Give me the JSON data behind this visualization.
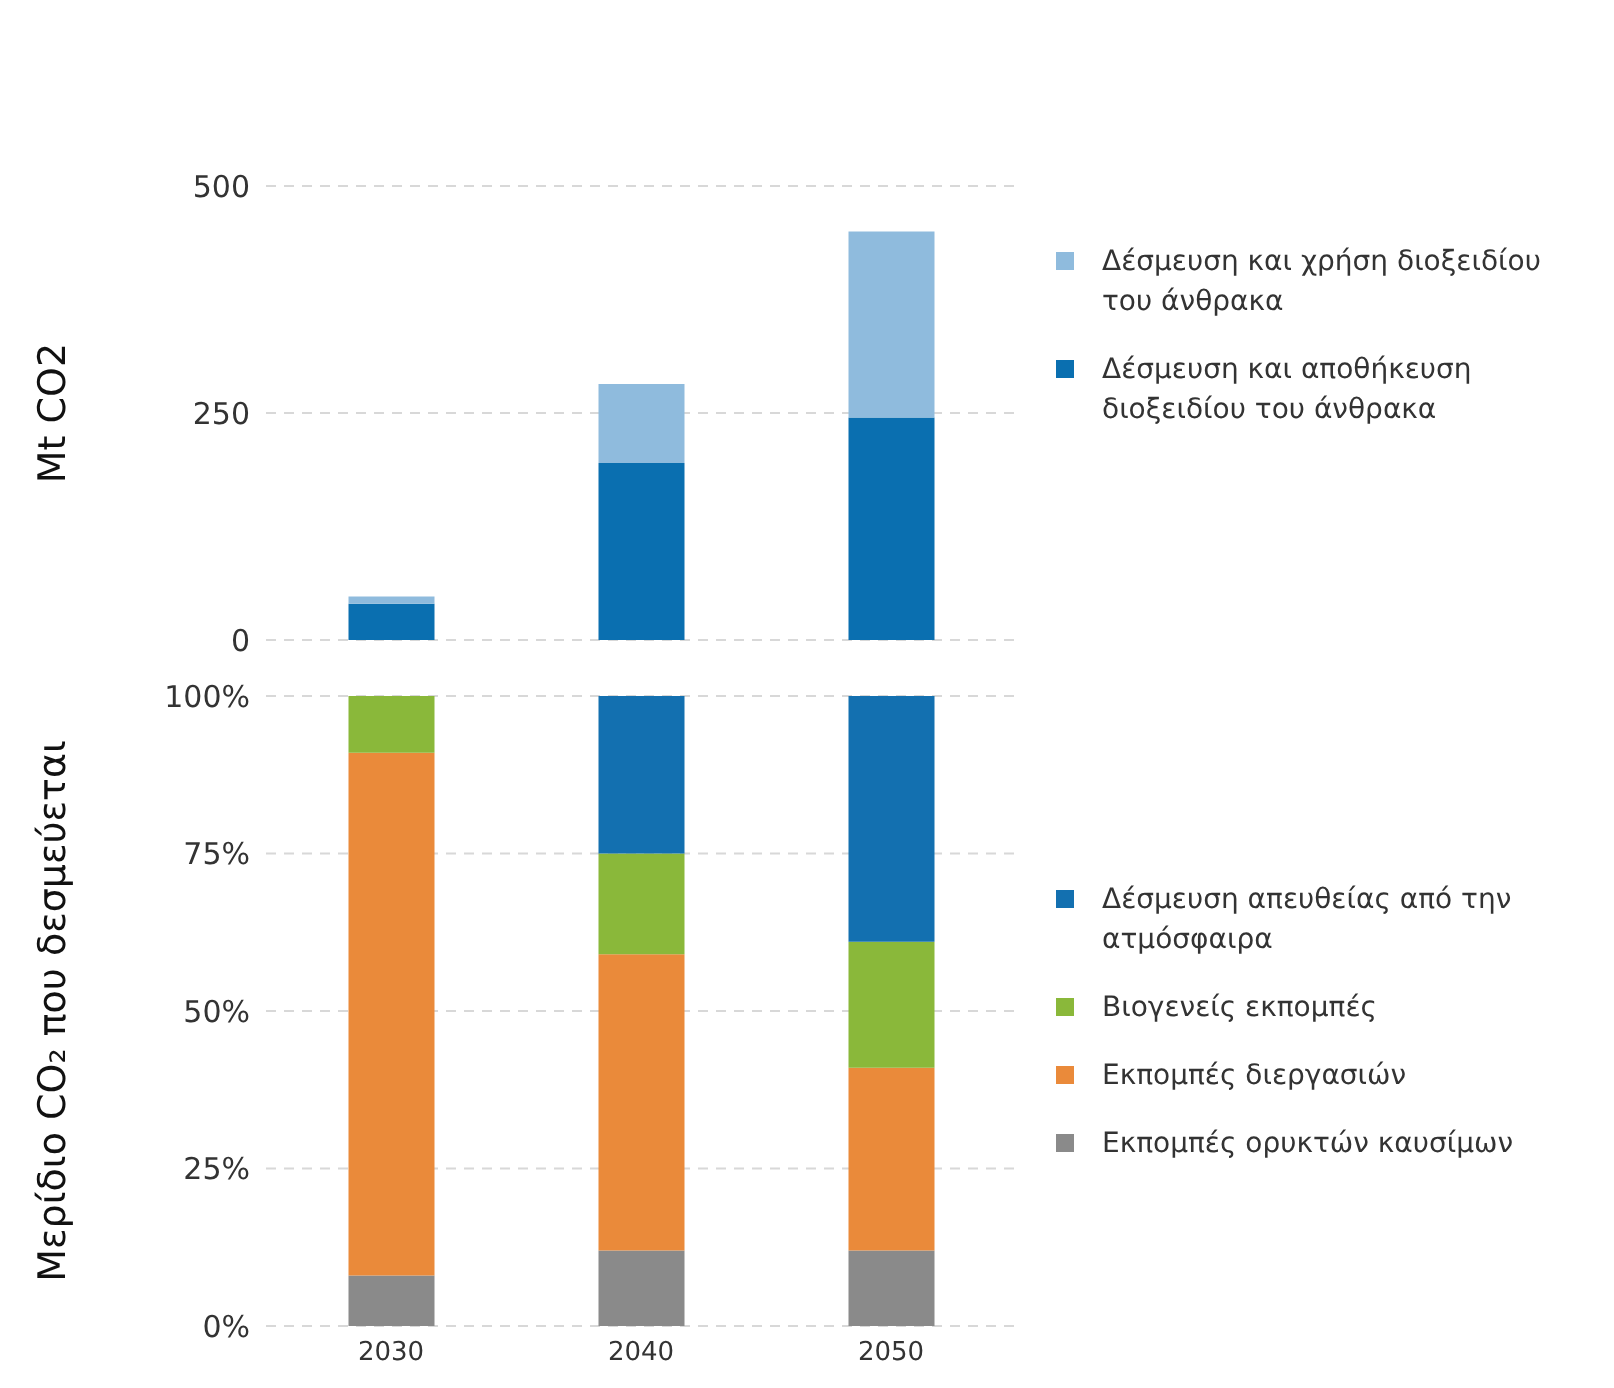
{
  "chart_data": [
    {
      "type": "bar",
      "stacked": true,
      "ylabel": "Mt CO2",
      "categories": [
        "2030",
        "2040",
        "2050"
      ],
      "ylim": [
        0,
        500
      ],
      "yticks": [
        0,
        250,
        500
      ],
      "grid": "y",
      "legend": "right",
      "tick_labels": "y",
      "series": [
        {
          "name": "Δέσμευση και αποθήκευση διοξειδίου του άνθρακα",
          "color": "#0a6fb0",
          "values": [
            40,
            195,
            245
          ]
        },
        {
          "name": "Δέσμευση και χρήση διοξειδίου του άνθρακα",
          "color": "#8fbbdd",
          "values": [
            8,
            87,
            205
          ]
        }
      ]
    },
    {
      "type": "bar",
      "stacked": true,
      "ylabel": "Μερίδιο CO₂ που δεσμεύεται",
      "categories": [
        "2030",
        "2040",
        "2050"
      ],
      "ylim": [
        0,
        100
      ],
      "yticks": [
        {
          "value": 0,
          "label": "0%"
        },
        {
          "value": 25,
          "label": "25%"
        },
        {
          "value": 50,
          "label": "50%"
        },
        {
          "value": 75,
          "label": "75%"
        },
        {
          "value": 100,
          "label": "100%"
        }
      ],
      "grid": "y",
      "legend": "right",
      "series": [
        {
          "name": "Εκπομπές ορυκτών καυσίμων",
          "color": "#8a8a8a",
          "values": [
            8,
            12,
            12
          ]
        },
        {
          "name": "Εκπομπές διεργασιών",
          "color": "#ea8a3a",
          "values": [
            83,
            47,
            29
          ]
        },
        {
          "name": "Βιογενείς εκπομπές",
          "color": "#8ab83a",
          "values": [
            9,
            16,
            20
          ]
        },
        {
          "name": "Δέσμευση απευθείας από την ατμόσφαιρα",
          "color": "#1370b0",
          "values": [
            0,
            25,
            39
          ]
        }
      ]
    }
  ]
}
